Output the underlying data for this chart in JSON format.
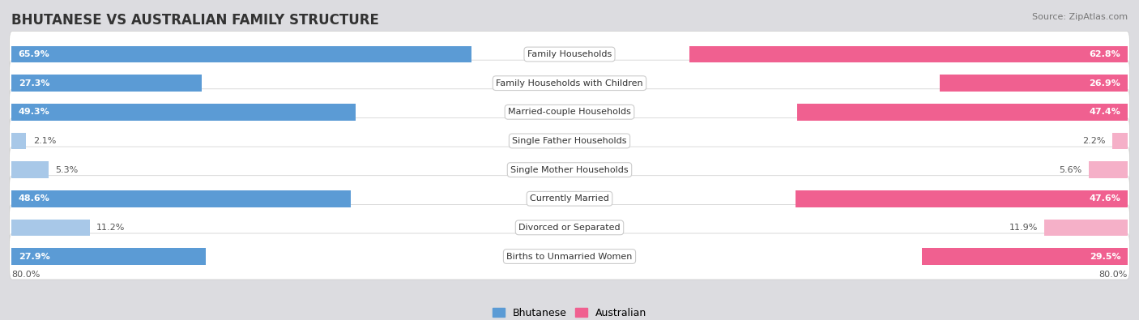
{
  "title": "BHUTANESE VS AUSTRALIAN FAMILY STRUCTURE",
  "source": "Source: ZipAtlas.com",
  "categories": [
    "Family Households",
    "Family Households with Children",
    "Married-couple Households",
    "Single Father Households",
    "Single Mother Households",
    "Currently Married",
    "Divorced or Separated",
    "Births to Unmarried Women"
  ],
  "bhutanese_values": [
    65.9,
    27.3,
    49.3,
    2.1,
    5.3,
    48.6,
    11.2,
    27.9
  ],
  "australian_values": [
    62.8,
    26.9,
    47.4,
    2.2,
    5.6,
    47.6,
    11.9,
    29.5
  ],
  "blue_large": "#5b9bd5",
  "blue_small": "#a8c8e8",
  "pink_large": "#f06090",
  "pink_small": "#f5b0c8",
  "large_threshold": 20,
  "axis_max": 80.0,
  "bar_height": 0.58,
  "row_bg_colors": [
    "#f0f0f2",
    "#e8e8ec"
  ],
  "legend_labels": [
    "Bhutanese",
    "Australian"
  ],
  "title_fontsize": 12,
  "label_fontsize": 8,
  "value_fontsize": 8,
  "source_fontsize": 8
}
